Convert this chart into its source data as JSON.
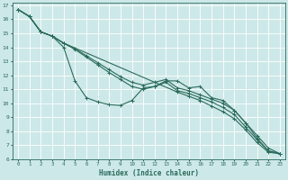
{
  "xlabel": "Humidex (Indice chaleur)",
  "xlim": [
    -0.5,
    23.5
  ],
  "ylim": [
    6,
    17.2
  ],
  "yticks": [
    6,
    7,
    8,
    9,
    10,
    11,
    12,
    13,
    14,
    15,
    16,
    17
  ],
  "xticks": [
    0,
    1,
    2,
    3,
    4,
    5,
    6,
    7,
    8,
    9,
    10,
    11,
    12,
    13,
    14,
    15,
    16,
    17,
    18,
    19,
    20,
    21,
    22,
    23
  ],
  "bg_color": "#cde8e8",
  "line_color": "#2a6b5a",
  "grid_color": "#ffffff",
  "series": [
    {
      "x": [
        0,
        1,
        2,
        3,
        4,
        5,
        6,
        7,
        8,
        9,
        10,
        11,
        12,
        13,
        14,
        15,
        16,
        17,
        18,
        19,
        20,
        21,
        22,
        23
      ],
      "y": [
        16.7,
        16.2,
        15.1,
        14.8,
        14.0,
        11.6,
        10.4,
        10.1,
        9.9,
        9.85,
        10.2,
        11.1,
        11.2,
        11.6,
        11.6,
        11.1,
        11.2,
        10.4,
        10.2,
        9.5,
        8.6,
        7.5,
        6.6,
        6.4
      ]
    },
    {
      "x": [
        0,
        1,
        2,
        3,
        4,
        5,
        6,
        7,
        8,
        9,
        10,
        11,
        12,
        13,
        14,
        15,
        16,
        17,
        18,
        19,
        20,
        21,
        22,
        23
      ],
      "y": [
        16.7,
        16.2,
        15.1,
        14.8,
        14.3,
        13.9,
        13.4,
        12.9,
        12.4,
        11.9,
        11.5,
        11.3,
        11.5,
        11.7,
        11.1,
        10.9,
        10.6,
        10.3,
        10.0,
        9.5,
        8.6,
        7.7,
        6.8,
        6.4
      ]
    },
    {
      "x": [
        0,
        1,
        2,
        3,
        4,
        5,
        6,
        7,
        8,
        9,
        10,
        11,
        12,
        13,
        14,
        15,
        16,
        17,
        18,
        19,
        20,
        21,
        22,
        23
      ],
      "y": [
        16.7,
        16.2,
        15.1,
        14.8,
        14.3,
        13.85,
        13.3,
        12.75,
        12.2,
        11.7,
        11.2,
        11.0,
        11.2,
        11.5,
        10.9,
        10.7,
        10.4,
        10.1,
        9.7,
        9.2,
        8.3,
        7.4,
        6.6,
        6.4
      ]
    },
    {
      "x": [
        0,
        1,
        2,
        3,
        4,
        14,
        15,
        16,
        17,
        18,
        19,
        20,
        21,
        22,
        23
      ],
      "y": [
        16.7,
        16.2,
        15.1,
        14.8,
        14.3,
        10.8,
        10.5,
        10.2,
        9.8,
        9.4,
        8.9,
        8.1,
        7.2,
        6.5,
        6.4
      ]
    }
  ]
}
